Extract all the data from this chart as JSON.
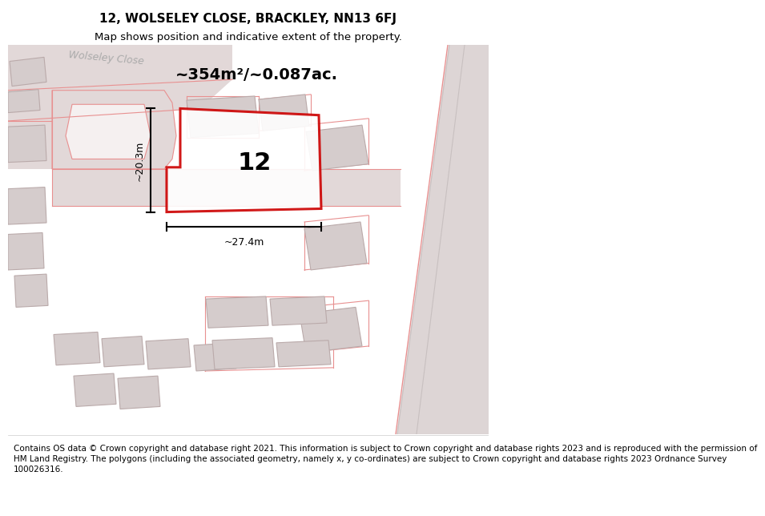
{
  "title_line1": "12, WOLSELEY CLOSE, BRACKLEY, NN13 6FJ",
  "title_line2": "Map shows position and indicative extent of the property.",
  "area_text": "~354m²/~0.087ac.",
  "label_number": "12",
  "dim_height": "~20.3m",
  "dim_width": "~27.4m",
  "road_label": "Wolseley Close",
  "footer_text": "Contains OS data © Crown copyright and database right 2021. This information is subject to Crown copyright and database rights 2023 and is reproduced with the permission of\nHM Land Registry. The polygons (including the associated geometry, namely x, y co-ordinates) are subject to Crown copyright and database rights 2023 Ordnance Survey\n100026316.",
  "map_bg": "#f5f0f0",
  "road_fill": "#e2d8d8",
  "bldg_fill": "#d5cccc",
  "bldg_edge": "#baaaaa",
  "pink": "#e89090",
  "red": "#cc0000",
  "header_bg": "#ffffff",
  "footer_bg": "#ffffff",
  "title_fs": 11,
  "subtitle_fs": 9.5,
  "footer_fs": 7.5,
  "road_label_color": "#aaaaaa"
}
